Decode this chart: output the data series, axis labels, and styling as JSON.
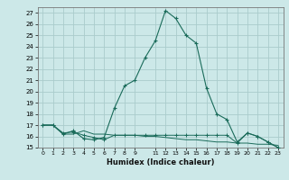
{
  "xlabel": "Humidex (Indice chaleur)",
  "background_color": "#cce8e8",
  "grid_color": "#aacccc",
  "line_color": "#1a6b5a",
  "xlim": [
    -0.5,
    23.5
  ],
  "ylim": [
    15,
    27.5
  ],
  "yticks": [
    15,
    16,
    17,
    18,
    19,
    20,
    21,
    22,
    23,
    24,
    25,
    26,
    27
  ],
  "xtick_positions": [
    0,
    1,
    2,
    3,
    4,
    5,
    6,
    7,
    8,
    9,
    11,
    12,
    13,
    14,
    15,
    16,
    17,
    18,
    19,
    20,
    21,
    22,
    23
  ],
  "xtick_labels": [
    "0",
    "1",
    "2",
    "3",
    "4",
    "5",
    "6",
    "7",
    "8",
    "9",
    "11",
    "12",
    "13",
    "14",
    "15",
    "16",
    "17",
    "18",
    "19",
    "20",
    "21",
    "22",
    "23"
  ],
  "series1_x": [
    0,
    1,
    2,
    3,
    4,
    5,
    6,
    7,
    8,
    9,
    10,
    11,
    12,
    13,
    14,
    15,
    16,
    17,
    18,
    19,
    20,
    21,
    22,
    23
  ],
  "series1_y": [
    17.0,
    17.0,
    16.2,
    16.5,
    15.8,
    15.7,
    15.9,
    18.5,
    20.5,
    21.0,
    23.0,
    24.5,
    27.2,
    26.5,
    25.0,
    24.3,
    20.3,
    18.0,
    17.5,
    15.5,
    16.3,
    16.0,
    15.5,
    15.0
  ],
  "series2_x": [
    0,
    1,
    2,
    3,
    4,
    5,
    6,
    7,
    8,
    9,
    10,
    11,
    12,
    13,
    14,
    15,
    16,
    17,
    18,
    19,
    20,
    21,
    22,
    23
  ],
  "series2_y": [
    17.0,
    17.0,
    16.2,
    16.2,
    16.5,
    16.2,
    16.2,
    16.1,
    16.1,
    16.1,
    16.0,
    16.0,
    15.9,
    15.8,
    15.7,
    15.7,
    15.6,
    15.5,
    15.5,
    15.4,
    15.4,
    15.3,
    15.3,
    15.2
  ],
  "series3_x": [
    0,
    1,
    2,
    3,
    4,
    5,
    6,
    7,
    8,
    9,
    10,
    11,
    12,
    13,
    14,
    15,
    16,
    17,
    18,
    19,
    20,
    21,
    22,
    23
  ],
  "series3_y": [
    17.0,
    17.0,
    16.3,
    16.4,
    16.1,
    15.9,
    15.7,
    16.1,
    16.1,
    16.1,
    16.1,
    16.1,
    16.1,
    16.1,
    16.1,
    16.1,
    16.1,
    16.1,
    16.1,
    15.4,
    16.3,
    16.0,
    15.5,
    15.0
  ]
}
